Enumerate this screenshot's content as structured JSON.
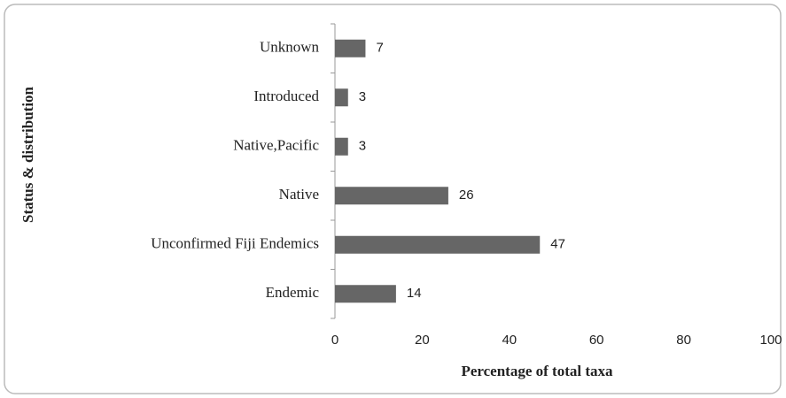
{
  "chart_data": {
    "type": "bar",
    "orientation": "horizontal",
    "y_label": "Status & distribution",
    "x_label": "Percentage of total taxa",
    "categories": [
      "Endemic",
      "Unconfirmed Fiji Endemics",
      "Native",
      "Native,Pacific",
      "Introduced",
      "Unknown"
    ],
    "values": [
      14,
      47,
      26,
      3,
      3,
      7
    ],
    "color": "#666666",
    "xlim": [
      0,
      100
    ],
    "xticks": [
      0,
      20,
      40,
      60,
      80,
      100
    ]
  }
}
